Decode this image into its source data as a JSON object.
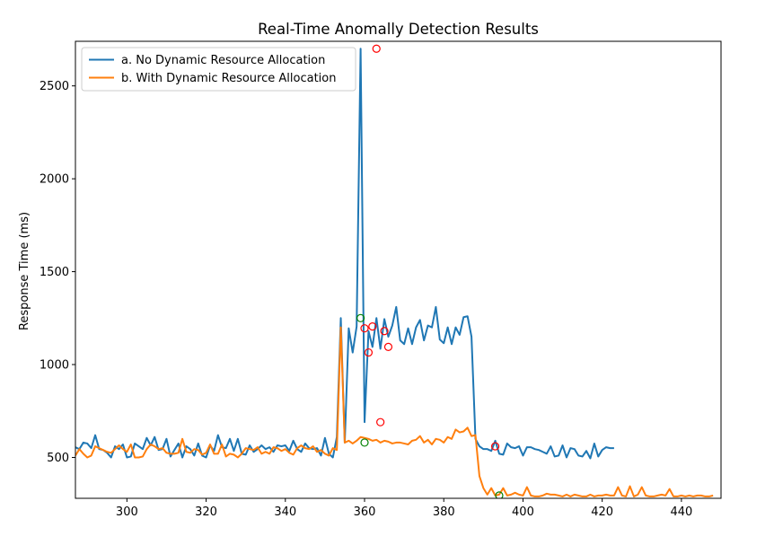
{
  "chart_data": {
    "type": "line",
    "title": "Real-Time Anomally Detection Results",
    "xlabel": "",
    "ylabel": "Response Time (ms)",
    "xlim": [
      287,
      450
    ],
    "ylim": [
      280,
      2740
    ],
    "xticks": [
      300,
      320,
      340,
      360,
      380,
      400,
      420,
      440
    ],
    "yticks": [
      500,
      1000,
      1500,
      2000,
      2500
    ],
    "legend_position": "top-left",
    "grid": false,
    "series": [
      {
        "name": "a. No Dynamic Resource Allocation",
        "color": "#1f77b4",
        "x_start": 287,
        "values": [
          555,
          545,
          580,
          575,
          550,
          620,
          545,
          540,
          525,
          500,
          560,
          545,
          570,
          500,
          505,
          575,
          560,
          545,
          605,
          565,
          610,
          540,
          545,
          600,
          505,
          540,
          575,
          500,
          560,
          545,
          510,
          575,
          510,
          500,
          565,
          535,
          620,
          555,
          550,
          600,
          535,
          600,
          520,
          515,
          565,
          530,
          545,
          565,
          545,
          555,
          530,
          565,
          560,
          565,
          535,
          590,
          545,
          530,
          575,
          550,
          545,
          550,
          510,
          605,
          520,
          500,
          610,
          1250,
          580,
          1195,
          1065,
          1205,
          2700,
          690,
          1180,
          1095,
          1250,
          1085,
          1245,
          1150,
          1210,
          1310,
          1130,
          1110,
          1195,
          1110,
          1200,
          1240,
          1130,
          1210,
          1200,
          1310,
          1135,
          1115,
          1200,
          1110,
          1200,
          1160,
          1255,
          1260,
          1150,
          600,
          560,
          545,
          545,
          535,
          590,
          520,
          515,
          575,
          555,
          550,
          560,
          510,
          555,
          555,
          545,
          540,
          530,
          520,
          560,
          505,
          510,
          565,
          500,
          550,
          545,
          510,
          505,
          535,
          495,
          575,
          505,
          540,
          555,
          550,
          550
        ]
      },
      {
        "name": "b. With Dynamic Resource Allocation",
        "color": "#ff7f0e",
        "x_start": 287,
        "values": [
          510,
          545,
          520,
          500,
          510,
          560,
          550,
          540,
          530,
          525,
          545,
          565,
          545,
          530,
          570,
          500,
          500,
          505,
          545,
          570,
          560,
          545,
          550,
          525,
          520,
          520,
          525,
          600,
          530,
          525,
          545,
          540,
          515,
          525,
          570,
          520,
          520,
          570,
          505,
          520,
          515,
          500,
          520,
          550,
          545,
          540,
          555,
          520,
          530,
          520,
          555,
          550,
          535,
          545,
          525,
          515,
          550,
          565,
          550,
          545,
          560,
          530,
          540,
          520,
          510,
          550,
          540,
          1200,
          580,
          590,
          575,
          590,
          610,
          605,
          600,
          590,
          595,
          580,
          590,
          585,
          575,
          580,
          580,
          575,
          570,
          590,
          595,
          615,
          580,
          595,
          570,
          600,
          595,
          580,
          610,
          600,
          650,
          635,
          640,
          660,
          615,
          620,
          400,
          335,
          300,
          335,
          295,
          300,
          335,
          295,
          300,
          310,
          300,
          295,
          340,
          295,
          290,
          290,
          295,
          305,
          300,
          300,
          295,
          290,
          300,
          290,
          300,
          295,
          290,
          290,
          300,
          290,
          295,
          295,
          300,
          295,
          295,
          340,
          295,
          290,
          345,
          290,
          300,
          340,
          295,
          290,
          290,
          295,
          300,
          295,
          330,
          290,
          290,
          295,
          290,
          295,
          290,
          295,
          295,
          290,
          290,
          295
        ]
      }
    ],
    "anomaly_markers": {
      "red": [
        [
          360,
          1195
        ],
        [
          361,
          1065
        ],
        [
          362,
          1205
        ],
        [
          363,
          2700
        ],
        [
          364,
          690
        ],
        [
          365,
          1180
        ],
        [
          366,
          1095
        ],
        [
          393,
          560
        ]
      ],
      "green": [
        [
          359,
          1250
        ],
        [
          360,
          580
        ],
        [
          394,
          295
        ]
      ]
    }
  }
}
